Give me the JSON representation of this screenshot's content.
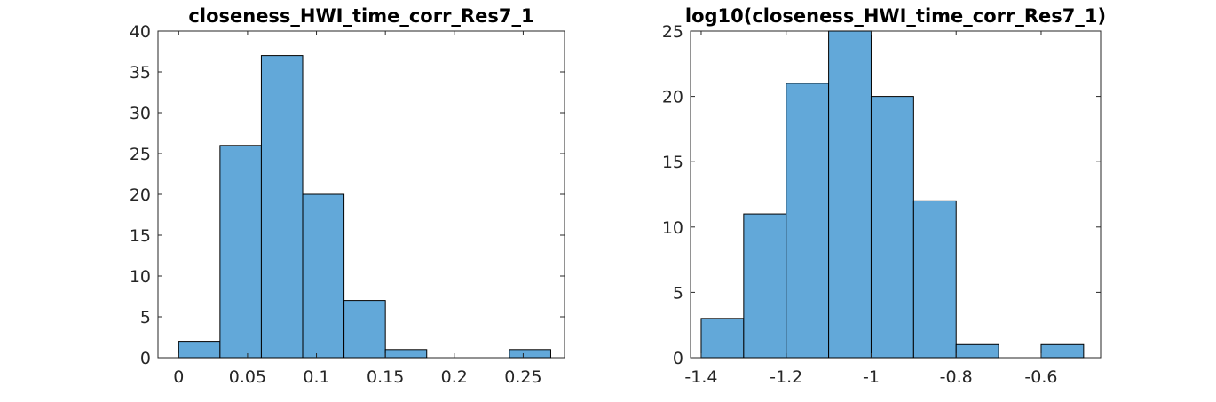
{
  "chart_data": [
    {
      "type": "bar",
      "title": "closeness_HWI_time_corr_Res7_1",
      "bin_edges": [
        0,
        0.03,
        0.06,
        0.09,
        0.12,
        0.15,
        0.18,
        0.21,
        0.24,
        0.27
      ],
      "values": [
        2,
        26,
        37,
        20,
        7,
        1,
        0,
        0,
        1
      ],
      "xlim": [
        -0.015,
        0.28
      ],
      "ylim": [
        0,
        40
      ],
      "xticks": [
        0,
        0.05,
        0.1,
        0.15,
        0.2,
        0.25
      ],
      "xtick_labels": [
        "0",
        "0.05",
        "0.1",
        "0.15",
        "0.2",
        "0.25"
      ],
      "yticks": [
        0,
        5,
        10,
        15,
        20,
        25,
        30,
        35,
        40
      ],
      "ytick_labels": [
        "0",
        "5",
        "10",
        "15",
        "20",
        "25",
        "30",
        "35",
        "40"
      ],
      "bar_color": "#62a8d9",
      "grid": false
    },
    {
      "type": "bar",
      "title": "log10(closeness_HWI_time_corr_Res7_1)",
      "bin_edges": [
        -1.4,
        -1.3,
        -1.2,
        -1.1,
        -1.0,
        -0.9,
        -0.8,
        -0.7,
        -0.6,
        -0.5
      ],
      "values": [
        3,
        11,
        21,
        25,
        20,
        12,
        1,
        0,
        1
      ],
      "xlim": [
        -1.425,
        -0.46
      ],
      "ylim": [
        0,
        25
      ],
      "xticks": [
        -1.4,
        -1.2,
        -1.0,
        -0.8,
        -0.6
      ],
      "xtick_labels": [
        "-1.4",
        "-1.2",
        "-1",
        "-0.8",
        "-0.6"
      ],
      "yticks": [
        0,
        5,
        10,
        15,
        20,
        25
      ],
      "ytick_labels": [
        "0",
        "5",
        "10",
        "15",
        "20",
        "25"
      ],
      "bar_color": "#62a8d9",
      "grid": false
    }
  ]
}
